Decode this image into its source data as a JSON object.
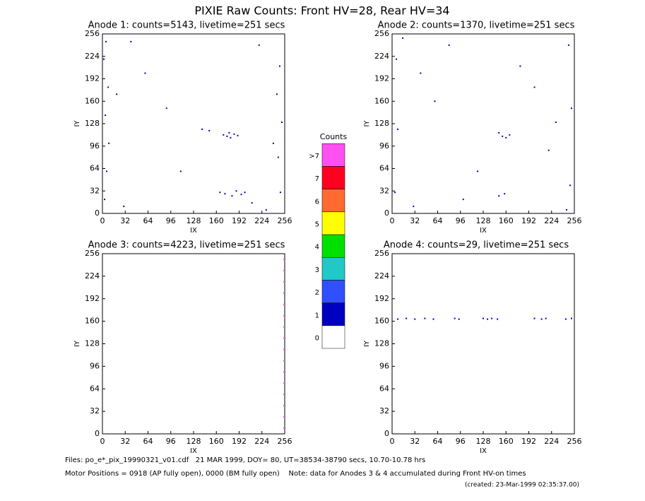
{
  "title": "PIXIE Raw Counts:  Front HV=28, Rear HV=34",
  "footer": [
    "Files: po_e*_pix_19990321_v01.cdf   21 MAR 1999, DOY= 80, UT=38534-38790 secs, 10.70-10.78 hrs",
    "Motor Positions = 0918 (AP fully open), 0000 (BM fully open)    Note: data for Anodes 3 & 4 accumulated during Front HV-on times",
    "(created: 23-Mar-1999 02:35:37.00)"
  ],
  "chart_data": [
    {
      "type": "scatter",
      "title": "Anode 1: counts=5143, livetime=251 secs",
      "xlabel": "IX",
      "ylabel": "IY",
      "xlim": [
        0,
        256
      ],
      "ylim": [
        0,
        256
      ],
      "xticks": [
        0,
        32,
        64,
        96,
        128,
        160,
        192,
        224,
        256
      ],
      "yticks": [
        0,
        32,
        64,
        96,
        128,
        160,
        192,
        224,
        256
      ],
      "series": [
        {
          "color": "#0000c0",
          "x": [
            3,
            6,
            9,
            4,
            8,
            2,
            5,
            250,
            247,
            252,
            245,
            249,
            170,
            175,
            180,
            185,
            190,
            178,
            165,
            172,
            182,
            188,
            195,
            200,
            140,
            150,
            60,
            90,
            110,
            220,
            30,
            40,
            210,
            230,
            20,
            240
          ],
          "y": [
            20,
            60,
            100,
            140,
            180,
            220,
            245,
            30,
            80,
            130,
            170,
            210,
            112,
            110,
            108,
            113,
            111,
            115,
            30,
            28,
            25,
            32,
            27,
            30,
            120,
            118,
            200,
            150,
            60,
            240,
            10,
            245,
            15,
            5,
            170,
            100
          ]
        }
      ]
    },
    {
      "type": "scatter",
      "title": "Anode 2: counts=1370, livetime=251 secs",
      "xlabel": "IX",
      "ylabel": "IY",
      "xlim": [
        0,
        256
      ],
      "ylim": [
        0,
        256
      ],
      "xticks": [
        0,
        32,
        64,
        96,
        128,
        160,
        192,
        224,
        256
      ],
      "yticks": [
        0,
        32,
        64,
        96,
        128,
        160,
        192,
        224,
        256
      ],
      "series": [
        {
          "color": "#0000c0",
          "x": [
            4,
            8,
            6,
            250,
            252,
            248,
            150,
            155,
            160,
            165,
            150,
            158,
            40,
            80,
            120,
            200,
            220,
            30,
            60,
            100,
            180,
            230,
            15,
            245
          ],
          "y": [
            30,
            120,
            220,
            40,
            150,
            240,
            115,
            110,
            108,
            112,
            25,
            28,
            200,
            240,
            60,
            180,
            90,
            10,
            160,
            20,
            210,
            130,
            250,
            5
          ]
        }
      ]
    },
    {
      "type": "scatter",
      "title": "Anode 3: counts=4223, livetime=251 secs",
      "xlabel": "IX",
      "ylabel": "IY",
      "xlim": [
        0,
        256
      ],
      "ylim": [
        0,
        256
      ],
      "xticks": [
        0,
        32,
        64,
        96,
        128,
        160,
        192,
        224,
        256
      ],
      "yticks": [
        0,
        32,
        64,
        96,
        128,
        160,
        192,
        224,
        256
      ],
      "series": [
        {
          "color": "#ff50f0",
          "x": [
            255,
            255,
            255,
            255,
            255,
            255,
            255,
            255,
            255,
            255,
            255,
            255,
            255,
            255,
            255,
            255
          ],
          "y": [
            8,
            24,
            40,
            56,
            72,
            88,
            104,
            120,
            136,
            152,
            168,
            184,
            200,
            216,
            232,
            248
          ]
        }
      ]
    },
    {
      "type": "scatter",
      "title": "Anode 4: counts=29, livetime=251 secs",
      "xlabel": "IX",
      "ylabel": "IY",
      "xlim": [
        0,
        256
      ],
      "ylim": [
        0,
        256
      ],
      "xticks": [
        0,
        32,
        64,
        96,
        128,
        160,
        192,
        224,
        256
      ],
      "yticks": [
        0,
        32,
        64,
        96,
        128,
        160,
        192,
        224,
        256
      ],
      "series": [
        {
          "color": "#0000c0",
          "x": [
            8,
            20,
            32,
            46,
            58,
            88,
            94,
            128,
            134,
            140,
            148,
            200,
            210,
            216,
            244,
            252
          ],
          "y": [
            163,
            164,
            163,
            164,
            163,
            164,
            163,
            164,
            163,
            164,
            163,
            164,
            163,
            164,
            163,
            164
          ]
        }
      ]
    },
    {
      "type": "colorbar",
      "title": "Counts",
      "categories": [
        "0",
        "1",
        "2",
        "3",
        "4",
        "5",
        "6",
        "7",
        ">7"
      ],
      "colors": [
        "#ffffff",
        "#0000c0",
        "#3050ff",
        "#20c8c8",
        "#00e000",
        "#ffff00",
        "#ff6a30",
        "#ff0020",
        "#ff50f0"
      ]
    }
  ]
}
